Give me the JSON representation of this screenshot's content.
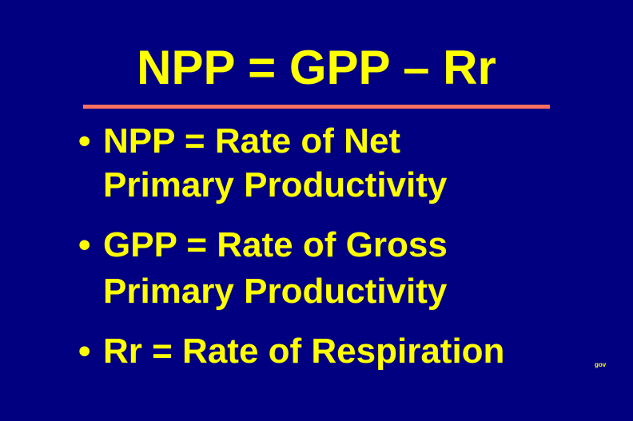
{
  "title": "NPP = GPP – Rr",
  "colors": {
    "background": "#000080",
    "text": "#ffff00",
    "rule": "#ff7060"
  },
  "bullets": [
    {
      "lines": [
        "NPP = Rate of Net",
        "Primary Productivity"
      ]
    },
    {
      "lines": [
        "GPP = Rate of Gross",
        "Primary Productivity"
      ]
    },
    {
      "lines": [
        "Rr = Rate of Respiration"
      ]
    }
  ],
  "bullet_glyph": "•",
  "footer_mark": "gov"
}
